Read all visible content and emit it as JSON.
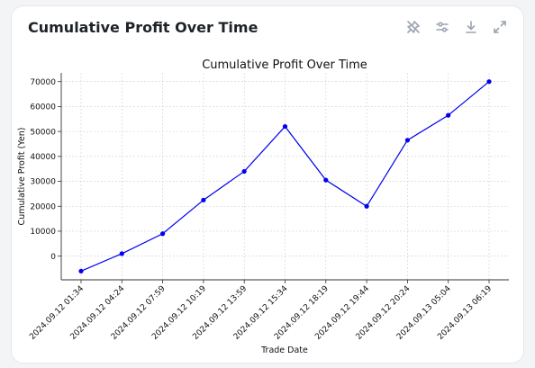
{
  "card": {
    "title": "Cumulative Profit Over Time",
    "tools": [
      {
        "name": "pin-icon"
      },
      {
        "name": "sliders-icon"
      },
      {
        "name": "download-icon"
      },
      {
        "name": "expand-icon"
      }
    ]
  },
  "chart_data": {
    "type": "line",
    "title": "Cumulative Profit Over Time",
    "xlabel": "Trade Date",
    "ylabel": "Cumulative Profit (Yen)",
    "categories": [
      "2024.09.12 01:34",
      "2024.09.12 04:24",
      "2024.09.12 07:59",
      "2024.09.12 10:19",
      "2024.09.12 13:59",
      "2024.09.12 15:34",
      "2024.09.12 18:19",
      "2024.09.12 19:44",
      "2024.09.12 20:24",
      "2024.09.13 05:04",
      "2024.09.13 06:19"
    ],
    "series": [
      {
        "values": [
          -6000,
          1000,
          9000,
          22500,
          34000,
          52000,
          30500,
          20000,
          46500,
          56500,
          70000
        ]
      }
    ],
    "yticks": [
      0,
      10000,
      20000,
      30000,
      40000,
      50000,
      60000,
      70000
    ],
    "ylim": [
      -9500,
      73500
    ],
    "grid": true,
    "line_color": "#0000ee"
  }
}
